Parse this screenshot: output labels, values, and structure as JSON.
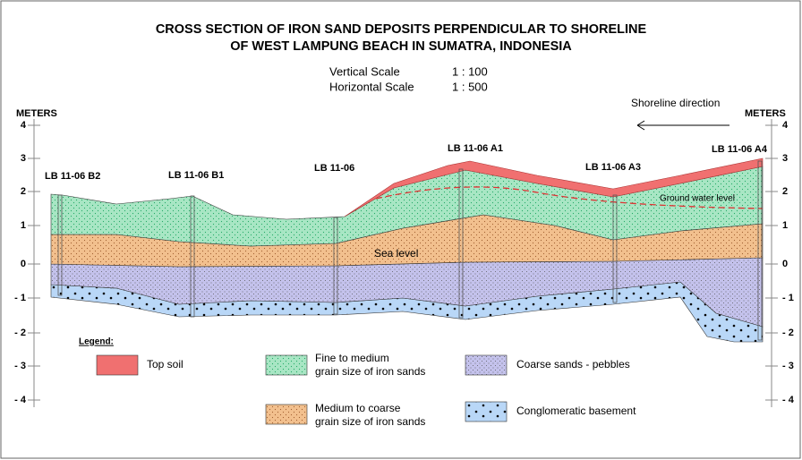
{
  "title": [
    "CROSS SECTION OF IRON SAND DEPOSITS PERPENDICULAR TO SHORELINE",
    "OF WEST LAMPUNG BEACH IN SUMATRA, INDONESIA"
  ],
  "scales": [
    {
      "label": "Vertical Scale",
      "value": "1 : 100"
    },
    {
      "label": "Horizontal Scale",
      "value": "1 : 500"
    }
  ],
  "axes": {
    "left": {
      "label": "METERS",
      "ticks": [
        "4",
        "3",
        "2",
        "1",
        "0",
        "- 1",
        "- 2",
        "- 3",
        "- 4"
      ]
    },
    "right": {
      "label": "METERS",
      "ticks": [
        "4",
        "3",
        "2",
        "1",
        "0",
        "- 1",
        "- 2",
        "- 3",
        "- 4"
      ]
    }
  },
  "wells": [
    "LB 11-06 B2",
    "LB 11-06 B1",
    "LB 11-06",
    "LB 11-06 A1",
    "LB 11-06 A3",
    "LB 11-06 A4"
  ],
  "labels": {
    "sea_level": "Sea level",
    "ground_water": "Ground water level",
    "shoreline": "Shoreline direction"
  },
  "legend": {
    "title": "Legend:",
    "items": [
      [
        "Top soil"
      ],
      [
        "Fine to medium",
        "grain size of iron sands"
      ],
      [
        "Coarse sands - pebbles"
      ],
      [
        "Medium to coarse",
        "grain size of iron sands"
      ],
      [
        "Conglomeratic basement"
      ]
    ]
  }
}
